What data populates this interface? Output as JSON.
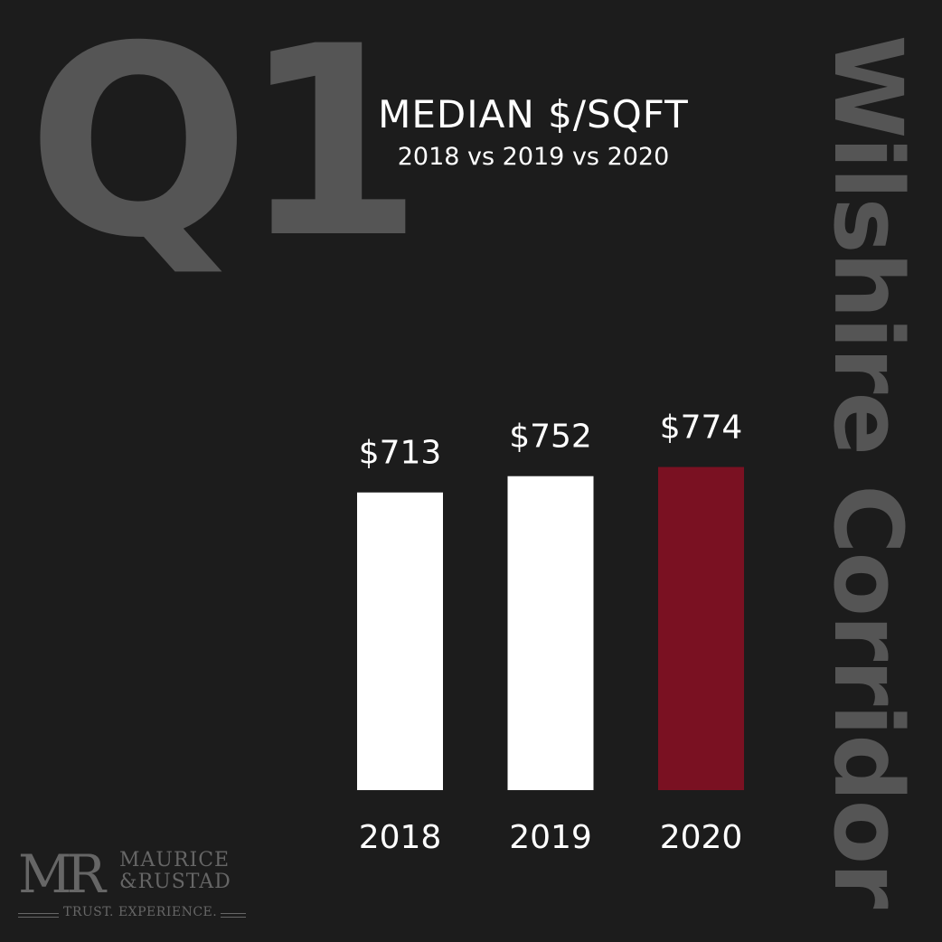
{
  "quarter_label": "Q1",
  "side_label": "Wilshire Corridor",
  "chart_data": {
    "type": "bar",
    "title": "MEDIAN $/SQFT",
    "subtitle": "2018 vs 2019 vs 2020",
    "categories": [
      "2018",
      "2019",
      "2020"
    ],
    "values": [
      713,
      752,
      774
    ],
    "data_labels": [
      "$713",
      "$752",
      "$774"
    ],
    "bar_colors": [
      "#ffffff",
      "#ffffff",
      "#7a1122"
    ],
    "grid": false
  },
  "logo": {
    "monogram": "MR",
    "name_line1": "MAURICE",
    "name_line2": "&RUSTAD",
    "tagline": "TRUST. EXPERIENCE."
  }
}
